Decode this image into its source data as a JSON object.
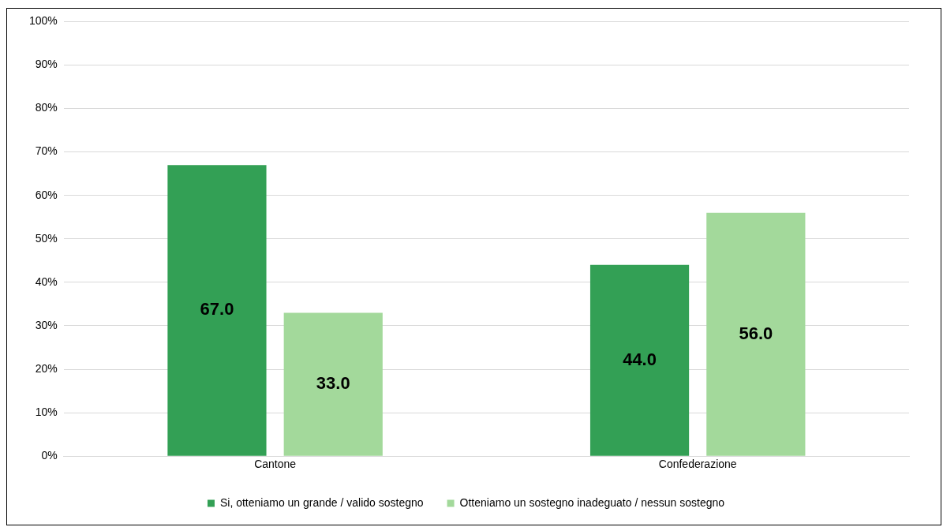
{
  "chart_data": {
    "type": "bar",
    "categories": [
      "Cantone",
      "Confederazione"
    ],
    "series": [
      {
        "name": "Si, otteniamo un grande / valido sostegno",
        "color": "#33a055",
        "values": [
          67,
          44
        ],
        "value_labels": [
          "67.0",
          "44.0"
        ]
      },
      {
        "name": "Otteniamo un sostegno inadeguato / nessun sostegno",
        "color": "#a3d99b",
        "values": [
          33,
          56
        ],
        "value_labels": [
          "33.0",
          "56.0"
        ]
      }
    ],
    "ylim": [
      0,
      100
    ],
    "yticks": [
      {
        "value": 0,
        "label": "0%"
      },
      {
        "value": 10,
        "label": "10%"
      },
      {
        "value": 20,
        "label": "20%"
      },
      {
        "value": 30,
        "label": "30%"
      },
      {
        "value": 40,
        "label": "40%"
      },
      {
        "value": 50,
        "label": "50%"
      },
      {
        "value": 60,
        "label": "60%"
      },
      {
        "value": 70,
        "label": "70%"
      },
      {
        "value": 80,
        "label": "80%"
      },
      {
        "value": 90,
        "label": "90%"
      },
      {
        "value": 100,
        "label": "100%"
      }
    ],
    "grid": "y",
    "legend": "bottom"
  }
}
